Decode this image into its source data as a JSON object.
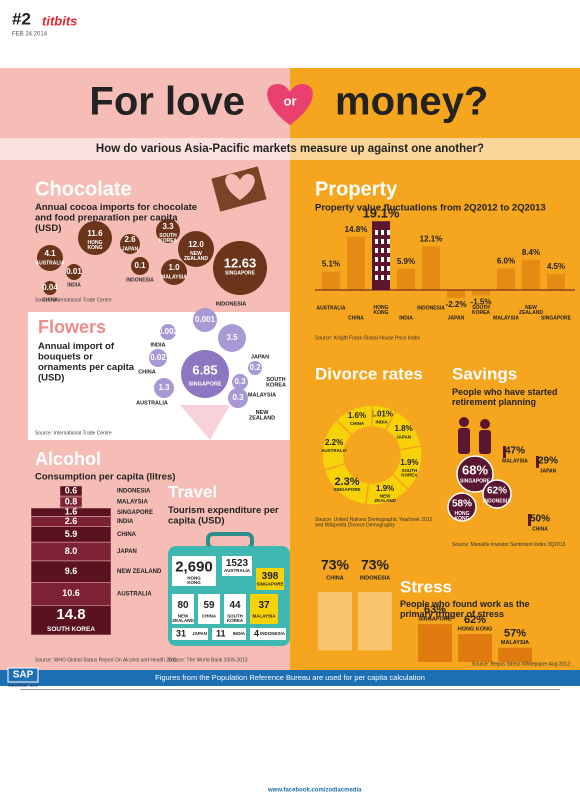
{
  "header": {
    "issue": "#2",
    "date": "FEB 24 2014",
    "brand": "titbits",
    "title_a": "For love",
    "title_or": "or",
    "title_b": "money?",
    "question": "How do various Asia-Pacific markets measure up against one another?"
  },
  "chocolate": {
    "title": "Chocolate",
    "subtitle": "Annual cocoa imports for chocolate and food preparation per capita (USD)",
    "source": "Source: International Trade Centre",
    "items": [
      {
        "name": "HONG KONG",
        "value": 11.6,
        "label": "11.6"
      },
      {
        "name": "JAPAN",
        "value": 2.6,
        "label": "2.6"
      },
      {
        "name": "SOUTH KOREA",
        "value": 3.3,
        "label": "3.3"
      },
      {
        "name": "NEW ZEALAND",
        "value": 12,
        "label": "12.0"
      },
      {
        "name": "AUSTRALIA",
        "value": 4.1,
        "label": "4.1"
      },
      {
        "name": "INDONESIA",
        "value": 0.1,
        "label": "0.1"
      },
      {
        "name": "MALAYSIA",
        "value": 1,
        "label": "1.0"
      },
      {
        "name": "INDIA",
        "value": 0.01,
        "label": "0.01"
      },
      {
        "name": "CHINA",
        "value": 0.04,
        "label": "0.04"
      },
      {
        "name": "SINGAPORE",
        "value": 12.63,
        "label": "12.63"
      }
    ]
  },
  "property": {
    "title": "Property",
    "subtitle": "Property value fluctuations from 2Q2012 to 2Q2013",
    "source": "Source: Knight Frank Global House Price Index",
    "items": [
      {
        "name": "AUSTRALIA",
        "value": 5.1,
        "label": "5.1%"
      },
      {
        "name": "CHINA",
        "value": 14.8,
        "label": "14.8%"
      },
      {
        "name": "HONG KONG",
        "value": 19.1,
        "label": "19.1%"
      },
      {
        "name": "INDIA",
        "value": 5.9,
        "label": "5.9%"
      },
      {
        "name": "INDONESIA",
        "value": 12.1,
        "label": "12.1%"
      },
      {
        "name": "JAPAN",
        "value": -2.2,
        "label": "-2.2%"
      },
      {
        "name": "SOUTH KOREA",
        "value": -1.5,
        "label": "-1.5%"
      },
      {
        "name": "MALAYSIA",
        "value": 6,
        "label": "6.0%"
      },
      {
        "name": "NEW ZEALAND",
        "value": 8.4,
        "label": "8.4%"
      },
      {
        "name": "SINGAPORE",
        "value": 4.5,
        "label": "4.5%"
      }
    ]
  },
  "flowers": {
    "title": "Flowers",
    "subtitle": "Annual import of bouquets or ornaments per capita (USD)",
    "source": "Source: International Trade Centre",
    "items": [
      {
        "name": "INDONESIA",
        "value": 0.001,
        "label": "0.001"
      },
      {
        "name": "INDIA",
        "value": 0.002,
        "label": "0.002"
      },
      {
        "name": "JAPAN",
        "value": 3.5,
        "label": "3.5"
      },
      {
        "name": "CHINA",
        "value": 0.02,
        "label": "0.02"
      },
      {
        "name": "SOUTH KOREA",
        "value": 0.2,
        "label": "0.2"
      },
      {
        "name": "SINGAPORE",
        "value": 6.85,
        "label": "6.85"
      },
      {
        "name": "MALAYSIA",
        "value": 0.3,
        "label": "0.3"
      },
      {
        "name": "AUSTRALIA",
        "value": 1.3,
        "label": "1.3"
      },
      {
        "name": "NEW ZEALAND",
        "value": 0.3,
        "label": "0.3"
      }
    ]
  },
  "divorce": {
    "title": "Divorce rates",
    "source": "Source: United Nations Demographic Yearbook 2012 and Wikipedia Divorce Demography",
    "items": [
      {
        "name": "INDIA",
        "value": 1.01,
        "label": "1.01%"
      },
      {
        "name": "JAPAN",
        "value": 1.8,
        "label": "1.8%"
      },
      {
        "name": "SOUTH KOREA",
        "value": 1.9,
        "label": "1.9%"
      },
      {
        "name": "NEW ZEALAND",
        "value": 1.9,
        "label": "1.9%"
      },
      {
        "name": "SINGAPORE",
        "value": 2.3,
        "label": "2.3%"
      },
      {
        "name": "AUSTRALIA",
        "value": 2.2,
        "label": "2.2%"
      },
      {
        "name": "CHINA",
        "value": 1.6,
        "label": "1.6%"
      }
    ]
  },
  "savings": {
    "title": "Savings",
    "subtitle": "People who have started retirement planning",
    "source": "Source: Manulife Investor Sentiment Index 3Q2013",
    "items": [
      {
        "name": "MALAYSIA",
        "value": 47,
        "label": "47%"
      },
      {
        "name": "JAPAN",
        "value": 29,
        "label": "29%"
      },
      {
        "name": "SINGAPORE",
        "value": 68,
        "label": "68%"
      },
      {
        "name": "HONG KONG",
        "value": 58,
        "label": "58%"
      },
      {
        "name": "INDONESIA",
        "value": 62,
        "label": "62%"
      },
      {
        "name": "CHINA",
        "value": 50,
        "label": "50%"
      }
    ]
  },
  "alcohol": {
    "title": "Alcohol",
    "subtitle": "Consumption per capita (litres)",
    "source": "Source: WHO Global Status Report On Alcohol and Health 2011",
    "items": [
      {
        "name": "INDONESIA",
        "value": 0.6,
        "label": "0.6"
      },
      {
        "name": "MALAYSIA",
        "value": 0.8,
        "label": "0.8"
      },
      {
        "name": "SINGAPORE",
        "value": 1.6,
        "label": "1.6"
      },
      {
        "name": "INDIA",
        "value": 2.6,
        "label": "2.6"
      },
      {
        "name": "CHINA",
        "value": 5.9,
        "label": "5.9"
      },
      {
        "name": "JAPAN",
        "value": 8,
        "label": "8.0"
      },
      {
        "name": "NEW ZEALAND",
        "value": 9.6,
        "label": "9.6"
      },
      {
        "name": "AUSTRALIA",
        "value": 10.6,
        "label": "10.6"
      },
      {
        "name": "SOUTH KOREA",
        "value": 14.8,
        "label": "14.8"
      }
    ]
  },
  "travel": {
    "title": "Travel",
    "subtitle": "Tourism expenditure per capita (USD)",
    "source": "Source: The World Bank 2009-2013",
    "items": [
      {
        "name": "HONG KONG",
        "value": 2690,
        "label": "2,690"
      },
      {
        "name": "AUSTRALIA",
        "value": 1523,
        "label": "1523"
      },
      {
        "name": "SINGAPORE",
        "value": 398,
        "label": "398"
      },
      {
        "name": "NEW ZEALAND",
        "value": 80,
        "label": "80"
      },
      {
        "name": "CHINA",
        "value": 59,
        "label": "59"
      },
      {
        "name": "SOUTH KOREA",
        "value": 44,
        "label": "44"
      },
      {
        "name": "MALAYSIA",
        "value": 37,
        "label": "37"
      },
      {
        "name": "JAPAN",
        "value": 31,
        "label": "31"
      },
      {
        "name": "INDIA",
        "value": 11,
        "label": "11"
      },
      {
        "name": "INDONESIA",
        "value": 4,
        "label": "4"
      }
    ]
  },
  "stress": {
    "title": "Stress",
    "subtitle": "People who found work as the primary trigger of stress",
    "source": "Source: Regus Stress Whitepaper Aug 2012",
    "items": [
      {
        "name": "CHINA",
        "value": 73,
        "label": "73%"
      },
      {
        "name": "INDONESIA",
        "value": 73,
        "label": "73%"
      },
      {
        "name": "SINGAPORE",
        "value": 63,
        "label": "63%"
      },
      {
        "name": "HONG KONG",
        "value": 62,
        "label": "62%"
      },
      {
        "name": "MALAYSIA",
        "value": 57,
        "label": "57%"
      }
    ]
  },
  "footer": {
    "logo": "SAP",
    "logo_source": "SOURCE: SAP",
    "note": "Figures from the Population Reference Bureau are used for per capita calculation",
    "facebook": "www.facebook.com/zodiacmedia"
  }
}
